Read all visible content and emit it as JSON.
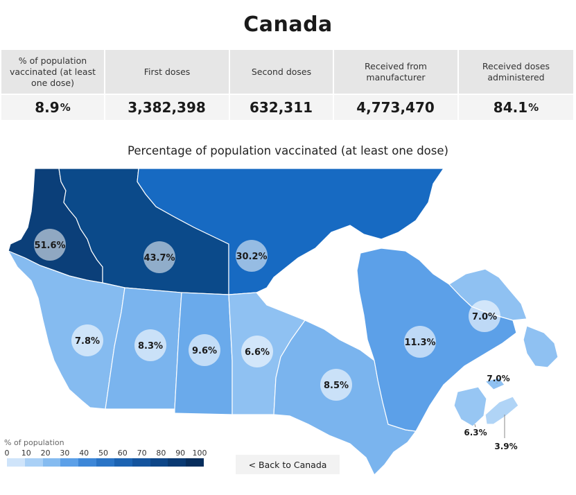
{
  "page": {
    "title": "Canada"
  },
  "stats": [
    {
      "label": "% of population vaccinated (at least one dose)",
      "value": "8.9",
      "unit": "%"
    },
    {
      "label": "First doses",
      "value": "3,382,398",
      "unit": ""
    },
    {
      "label": "Second doses",
      "value": "632,311",
      "unit": ""
    },
    {
      "label": "Received from manufacturer",
      "value": "4,773,470",
      "unit": ""
    },
    {
      "label": "Received doses administered",
      "value": "84.1",
      "unit": "%"
    }
  ],
  "map": {
    "title": "Percentage of population vaccinated (at least one dose)",
    "regions": [
      {
        "name": "Yukon",
        "value": "51.6%",
        "color": "#0b3f79"
      },
      {
        "name": "Northwest Territories",
        "value": "43.7%",
        "color": "#0b4a8a"
      },
      {
        "name": "Nunavut",
        "value": "30.2%",
        "color": "#176ac2"
      },
      {
        "name": "British Columbia",
        "value": "7.8%",
        "color": "#85bbf0"
      },
      {
        "name": "Alberta",
        "value": "8.3%",
        "color": "#7ab4ee"
      },
      {
        "name": "Saskatchewan",
        "value": "9.6%",
        "color": "#6aaaeb"
      },
      {
        "name": "Manitoba",
        "value": "6.6%",
        "color": "#8fc1f2"
      },
      {
        "name": "Ontario",
        "value": "8.5%",
        "color": "#7ab4ee"
      },
      {
        "name": "Quebec",
        "value": "11.3%",
        "color": "#5ca0e8"
      },
      {
        "name": "Newfoundland and Labrador",
        "value": "7.0%",
        "color": "#8fc1f2"
      },
      {
        "name": "New Brunswick",
        "value": "6.3%",
        "color": "#97c6f3"
      },
      {
        "name": "Prince Edward Island",
        "value": "7.0%",
        "color": "#8fc1f2"
      },
      {
        "name": "Nova Scotia",
        "value": "3.9%",
        "color": "#b0d4f6"
      }
    ]
  },
  "legend": {
    "title": "% of population",
    "ticks": [
      "0",
      "10",
      "20",
      "30",
      "40",
      "50",
      "60",
      "70",
      "80",
      "90",
      "100"
    ],
    "colors": [
      "#cfe4fa",
      "#a9d0f6",
      "#85bbf0",
      "#5ca0e8",
      "#3d87d8",
      "#2a74c6",
      "#1c63b2",
      "#14549e",
      "#0e4688",
      "#0a3a73",
      "#072d5c"
    ]
  },
  "back_button": {
    "label": "< Back to Canada"
  }
}
